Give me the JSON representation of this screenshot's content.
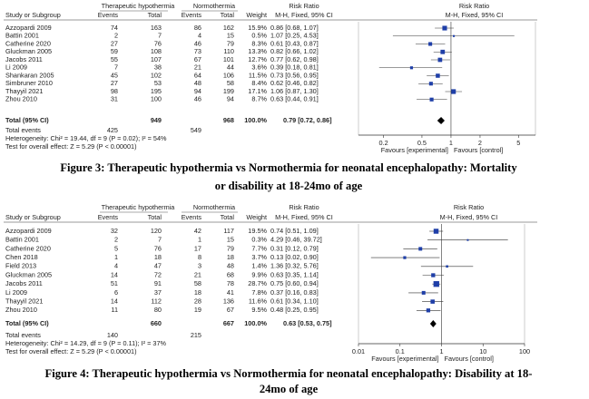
{
  "figures": [
    {
      "headers": {
        "group1": "Therapeutic hypothermia",
        "group2": "Normothermia",
        "study": "Study or Subgroup",
        "events1": "Events",
        "total1": "Total",
        "events2": "Events",
        "total2": "Total",
        "weight": "Weight",
        "rr_title": "Risk Ratio",
        "rr_method": "M-H, Fixed, 95% CI",
        "plot_title": "Risk Ratio",
        "plot_method": "M-H, Fixed, 95% CI"
      },
      "rows": [
        [
          "Azzopardi 2009",
          74,
          163,
          86,
          162,
          "15.9%",
          "0.86 [0.68, 1.07]",
          0.86,
          0.68,
          1.07
        ],
        [
          "Battin 2001",
          2,
          7,
          4,
          15,
          "0.5%",
          "1.07 [0.25, 4.53]",
          1.07,
          0.25,
          4.53
        ],
        [
          "Catherine 2020",
          27,
          76,
          46,
          79,
          "8.3%",
          "0.61 [0.43, 0.87]",
          0.61,
          0.43,
          0.87
        ],
        [
          "Gluckman 2005",
          59,
          108,
          73,
          110,
          "13.3%",
          "0.82 [0.66, 1.02]",
          0.82,
          0.66,
          1.02
        ],
        [
          "Jacobs 2011",
          55,
          107,
          67,
          101,
          "12.7%",
          "0.77 [0.62, 0.98]",
          0.77,
          0.62,
          0.98
        ],
        [
          "Li 2009",
          7,
          38,
          21,
          44,
          "3.6%",
          "0.39 [0.18, 0.81]",
          0.39,
          0.18,
          0.81
        ],
        [
          "Shankaran 2005",
          45,
          102,
          64,
          106,
          "11.5%",
          "0.73 [0.56, 0.95]",
          0.73,
          0.56,
          0.95
        ],
        [
          "Simbruner 2010",
          27,
          53,
          48,
          58,
          "8.4%",
          "0.62 [0.46, 0.82]",
          0.62,
          0.46,
          0.82
        ],
        [
          "Thayyil 2021",
          98,
          195,
          94,
          199,
          "17.1%",
          "1.06 [0.87, 1.30]",
          1.06,
          0.87,
          1.3
        ],
        [
          "Zhou 2010",
          31,
          100,
          46,
          94,
          "8.7%",
          "0.63 [0.44, 0.91]",
          0.63,
          0.44,
          0.91
        ]
      ],
      "total": {
        "label": "Total (95% CI)",
        "total1": 949,
        "total2": 968,
        "weight": "100.0%",
        "rr_text": "0.79 [0.72, 0.86]",
        "rr": 0.79,
        "lo": 0.72,
        "hi": 0.86
      },
      "total_events": {
        "label": "Total events",
        "events1": 425,
        "events2": 549
      },
      "heterogeneity": "Heterogeneity: Chi² = 19.44, df = 9 (P = 0.02); I² = 54%",
      "overall": "Test for overall effect: Z = 5.29 (P < 0.00001)",
      "axis": {
        "xlim": [
          0.11,
          7.5
        ],
        "ticks": [
          0.2,
          0.5,
          1,
          2,
          5
        ],
        "favours_left": "Favours [experimental]",
        "favours_right": "Favours [control]"
      },
      "caption": [
        "Figure 3: Therapeutic hypothermia vs Normothermia for neonatal encephalopathy: Mortality",
        "or disability at 18-24mo of age"
      ]
    },
    {
      "headers": {
        "group1": "Therapeutic hypothermia",
        "group2": "Normothermia",
        "study": "Study or Subgroup",
        "events1": "Events",
        "total1": "Total",
        "events2": "Events",
        "total2": "Total",
        "weight": "Weight",
        "rr_title": "Risk Ratio",
        "rr_method": "M-H, Fixed, 95% CI",
        "plot_title": "Risk Ratio",
        "plot_method": "M-H, Fixed, 95% CI"
      },
      "rows": [
        [
          "Azzopardi 2009",
          32,
          120,
          42,
          117,
          "19.5%",
          "0.74 [0.51, 1.09]",
          0.74,
          0.51,
          1.09
        ],
        [
          "Battin 2001",
          2,
          7,
          1,
          15,
          "0.3%",
          "4.29 [0.46, 39.72]",
          4.29,
          0.46,
          39.72
        ],
        [
          "Catherine 2020",
          5,
          76,
          17,
          79,
          "7.7%",
          "0.31 [0.12, 0.79]",
          0.31,
          0.12,
          0.79
        ],
        [
          "Chen 2018",
          1,
          18,
          8,
          18,
          "3.7%",
          "0.13 [0.02, 0.90]",
          0.13,
          0.02,
          0.9
        ],
        [
          "Field 2013",
          4,
          47,
          3,
          48,
          "1.4%",
          "1.36 [0.32, 5.76]",
          1.36,
          0.32,
          5.76
        ],
        [
          "Gluckman 2005",
          14,
          72,
          21,
          68,
          "9.9%",
          "0.63 [0.35, 1.14]",
          0.63,
          0.35,
          1.14
        ],
        [
          "Jacobs 2011",
          51,
          91,
          58,
          78,
          "28.7%",
          "0.75 [0.60, 0.94]",
          0.75,
          0.6,
          0.94
        ],
        [
          "Li 2009",
          6,
          37,
          18,
          41,
          "7.8%",
          "0.37 [0.16, 0.83]",
          0.37,
          0.16,
          0.83
        ],
        [
          "Thayyil 2021",
          14,
          112,
          28,
          136,
          "11.6%",
          "0.61 [0.34, 1.10]",
          0.61,
          0.34,
          1.1
        ],
        [
          "Zhou 2010",
          11,
          80,
          19,
          67,
          "9.5%",
          "0.48 [0.25, 0.95]",
          0.48,
          0.25,
          0.95
        ]
      ],
      "total": {
        "label": "Total (95% CI)",
        "total1": 660,
        "total2": 667,
        "weight": "100.0%",
        "rr_text": "0.63 [0.53, 0.75]",
        "rr": 0.63,
        "lo": 0.53,
        "hi": 0.75
      },
      "total_events": {
        "label": "Total events",
        "events1": 140,
        "events2": 215
      },
      "heterogeneity": "Heterogeneity: Chi² = 14.29, df = 9 (P = 0.11); I² = 37%",
      "overall": "Test for overall effect: Z = 5.29 (P < 0.00001)",
      "axis": {
        "xlim": [
          0.01,
          100
        ],
        "ticks": [
          0.01,
          0.1,
          1,
          10,
          100
        ],
        "favours_left": "Favours [experimental]",
        "favours_right": "Favours [control]"
      },
      "caption": [
        "Figure 4: Therapeutic hypothermia vs Normothermia for neonatal encephalopathy: Disability at 18-",
        "24mo of age"
      ]
    }
  ]
}
